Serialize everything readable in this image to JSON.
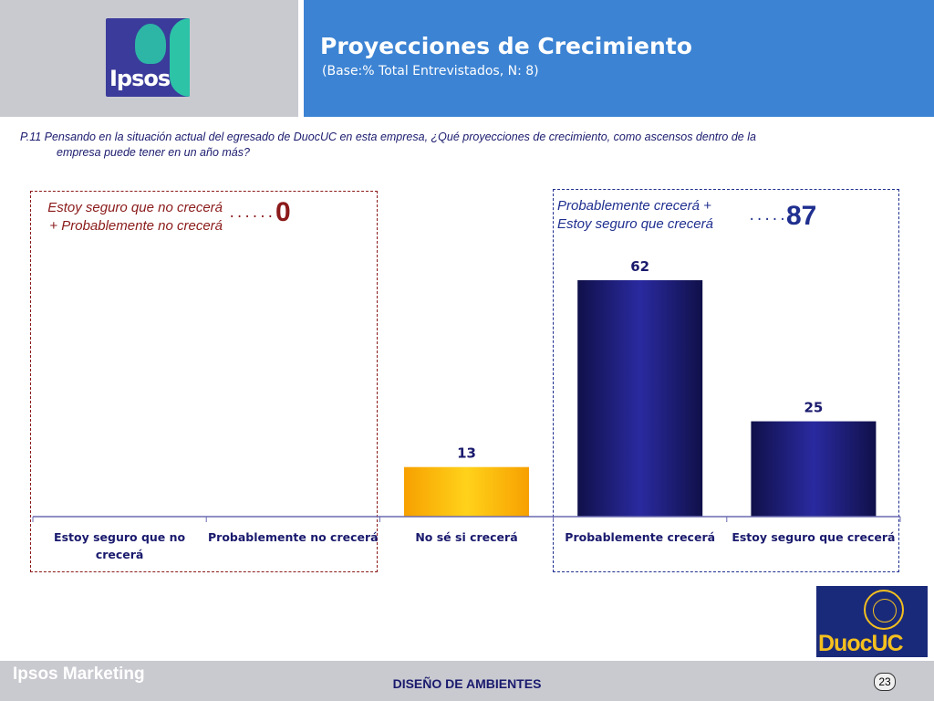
{
  "header": {
    "logo_text": "Ipsos",
    "title": "Proyecciones de Crecimiento",
    "subtitle": "(Base:% Total Entrevistados, N: 8)"
  },
  "question": {
    "line1": "P.11 Pensando en la situación actual del egresado de DuocUC en  esta empresa, ¿Qué  proyecciones de crecimiento, como ascensos dentro de la",
    "line2": "empresa  puede tener en un año más?"
  },
  "groups": {
    "negative": {
      "label": "Estoy seguro que no crecerá + Probablemente no crecerá",
      "total": "0",
      "arrow": "......›",
      "color": "#8b1a1a"
    },
    "positive": {
      "label": "Probablemente crecerá + Estoy seguro que crecerá",
      "total": "87",
      "arrow": "......›",
      "color": "#1f2f8f"
    }
  },
  "chart_data": {
    "type": "bar",
    "categories": [
      "Estoy seguro que no crecerá",
      "Probablemente no crecerá",
      "No sé si crecerá",
      "Probablemente crecerá",
      "Estoy seguro que crecerá"
    ],
    "values": [
      0,
      0,
      13,
      62,
      25
    ],
    "data_labels": [
      "",
      "",
      "13",
      "62",
      "25"
    ],
    "bar_colors": [
      "#1a1a6e",
      "#1a1a6e",
      "#fbb800",
      "#1a1a6e",
      "#1a1a6e"
    ],
    "ylim": [
      0,
      62
    ],
    "grid": false,
    "title": "",
    "xlabel": "",
    "ylabel": ""
  },
  "logos": {
    "duoc_text": "DuocUC"
  },
  "footer": {
    "brand": "Ipsos Marketing",
    "center": "DISEÑO DE AMBIENTES",
    "page": "23"
  }
}
